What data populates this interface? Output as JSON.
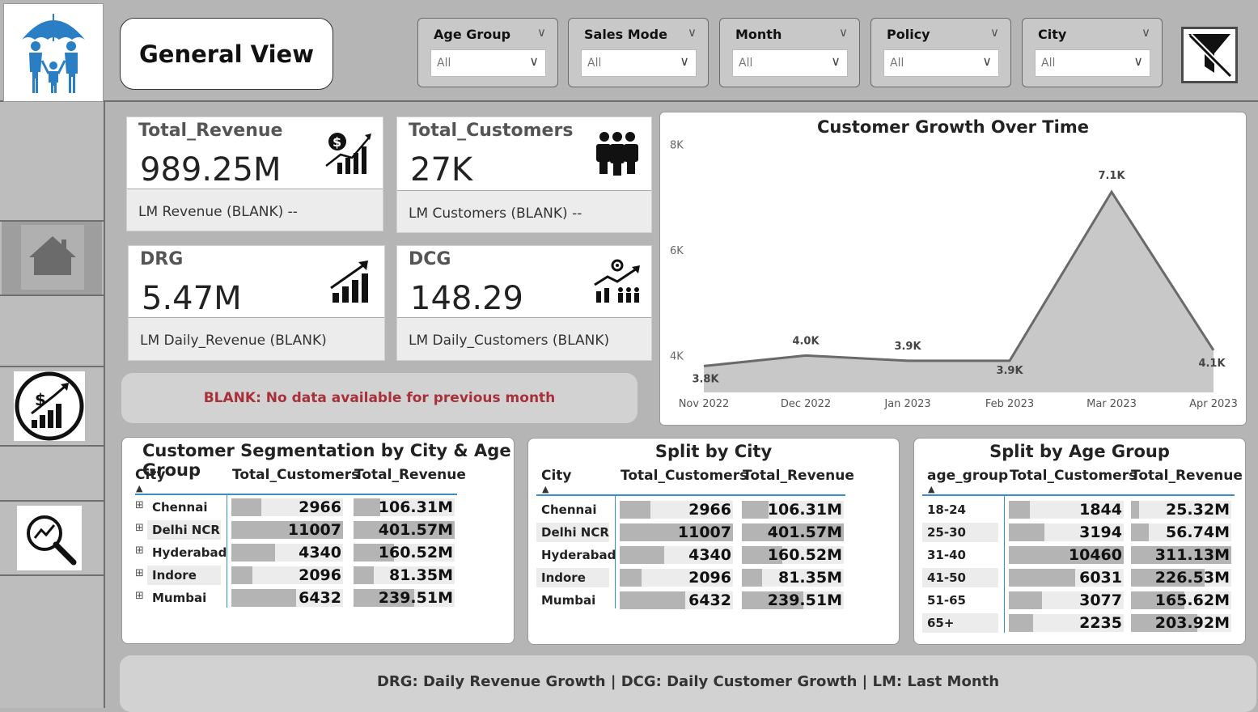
{
  "header": {
    "title": "General View"
  },
  "filters": [
    {
      "label": "Age Group",
      "value": "All"
    },
    {
      "label": "Sales Mode",
      "value": "All"
    },
    {
      "label": "Month",
      "value": "All"
    },
    {
      "label": "Policy",
      "value": "All"
    },
    {
      "label": "City",
      "value": "All"
    }
  ],
  "cards": [
    {
      "title": "Total_Revenue",
      "value": "989.25M",
      "sub": "LM Revenue (BLANK) --"
    },
    {
      "title": "Total_Customers",
      "value": "27K",
      "sub": "LM Customers (BLANK) --"
    },
    {
      "title": "DRG",
      "value": "5.47M",
      "sub": "LM Daily_Revenue (BLANK)"
    },
    {
      "title": "DCG",
      "value": "148.29",
      "sub": "LM Daily_Customers (BLANK)"
    }
  ],
  "note": "BLANK: No data available for previous month",
  "chart_data": {
    "type": "area",
    "title": "Customer Growth Over Time",
    "x": [
      "Nov 2022",
      "Dec 2022",
      "Jan 2023",
      "Feb 2023",
      "Mar 2023",
      "Apr 2023"
    ],
    "values": [
      3800,
      4000,
      3900,
      3900,
      7100,
      4100
    ],
    "labels": [
      "3.8K",
      "4.0K",
      "3.9K",
      "3.9K",
      "7.1K",
      "4.1K"
    ],
    "y_ticks": [
      "4K",
      "6K",
      "8K"
    ],
    "ylim": [
      3300,
      8300
    ],
    "color": "#c8c8c8",
    "line_color": "#6a6a6a"
  },
  "seg_table": {
    "title": "Customer Segmentation by City & Age Group",
    "headers": [
      "City",
      "Total_Customers",
      "Total_Revenue"
    ],
    "rows": [
      {
        "name": "Chennai",
        "customers": "2966",
        "revenue": "106.31M",
        "cust_frac": 0.27,
        "rev_frac": 0.26
      },
      {
        "name": "Delhi NCR",
        "customers": "11007",
        "revenue": "401.57M",
        "cust_frac": 1.0,
        "rev_frac": 1.0
      },
      {
        "name": "Hyderabad",
        "customers": "4340",
        "revenue": "160.52M",
        "cust_frac": 0.39,
        "rev_frac": 0.4
      },
      {
        "name": "Indore",
        "customers": "2096",
        "revenue": "81.35M",
        "cust_frac": 0.19,
        "rev_frac": 0.2
      },
      {
        "name": "Mumbai",
        "customers": "6432",
        "revenue": "239.51M",
        "cust_frac": 0.58,
        "rev_frac": 0.6
      }
    ]
  },
  "city_table": {
    "title": "Split by City",
    "headers": [
      "City",
      "Total_Customers",
      "Total_Revenue"
    ],
    "rows": [
      {
        "name": "Chennai",
        "customers": "2966",
        "revenue": "106.31M",
        "cust_frac": 0.27,
        "rev_frac": 0.26
      },
      {
        "name": "Delhi NCR",
        "customers": "11007",
        "revenue": "401.57M",
        "cust_frac": 1.0,
        "rev_frac": 1.0
      },
      {
        "name": "Hyderabad",
        "customers": "4340",
        "revenue": "160.52M",
        "cust_frac": 0.39,
        "rev_frac": 0.4
      },
      {
        "name": "Indore",
        "customers": "2096",
        "revenue": "81.35M",
        "cust_frac": 0.19,
        "rev_frac": 0.2
      },
      {
        "name": "Mumbai",
        "customers": "6432",
        "revenue": "239.51M",
        "cust_frac": 0.58,
        "rev_frac": 0.6
      }
    ]
  },
  "age_table": {
    "title": "Split by Age Group",
    "headers": [
      "age_group",
      "Total_Customers",
      "Total_Revenue"
    ],
    "rows": [
      {
        "name": "18-24",
        "customers": "1844",
        "revenue": "25.32M",
        "cust_frac": 0.18,
        "rev_frac": 0.08
      },
      {
        "name": "25-30",
        "customers": "3194",
        "revenue": "56.74M",
        "cust_frac": 0.31,
        "rev_frac": 0.18
      },
      {
        "name": "31-40",
        "customers": "10460",
        "revenue": "311.13M",
        "cust_frac": 1.0,
        "rev_frac": 1.0
      },
      {
        "name": "41-50",
        "customers": "6031",
        "revenue": "226.53M",
        "cust_frac": 0.58,
        "rev_frac": 0.73
      },
      {
        "name": "51-65",
        "customers": "3077",
        "revenue": "165.62M",
        "cust_frac": 0.29,
        "rev_frac": 0.53
      },
      {
        "name": "65+",
        "customers": "2235",
        "revenue": "203.92M",
        "cust_frac": 0.21,
        "rev_frac": 0.66
      }
    ]
  },
  "footer": "DRG: Daily Revenue Growth | DCG: Daily Customer Growth | LM: Last Month",
  "icons": [
    "family-umbrella-icon",
    "home-icon",
    "revenue-growth-icon",
    "analytics-search-icon",
    "clear-filter-icon"
  ]
}
